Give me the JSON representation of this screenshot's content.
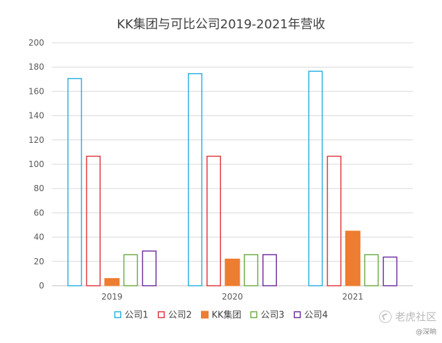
{
  "chart_data": {
    "type": "bar",
    "title": "KK集团与可比公司2019-2021年营收",
    "xlabel": "",
    "ylabel": "",
    "categories": [
      "2019",
      "2020",
      "2021"
    ],
    "ylim": [
      0,
      200
    ],
    "yticks": [
      0,
      20,
      40,
      60,
      80,
      100,
      120,
      140,
      160,
      180,
      200
    ],
    "grid": true,
    "legend_position": "bottom",
    "series": [
      {
        "name": "公司1",
        "values": [
          171,
          175,
          177
        ],
        "color": "#2eb0e0",
        "filled": false
      },
      {
        "name": "公司2",
        "values": [
          107,
          107,
          107
        ],
        "color": "#e0383e",
        "filled": false
      },
      {
        "name": "KK集团",
        "values": [
          6,
          22,
          45
        ],
        "color": "#ed7d31",
        "filled": true
      },
      {
        "name": "公司3",
        "values": [
          26,
          26,
          26
        ],
        "color": "#70ad47",
        "filled": false
      },
      {
        "name": "公司4",
        "values": [
          29,
          26,
          24
        ],
        "color": "#7030a0",
        "filled": false
      }
    ]
  },
  "watermark": {
    "text": "老虎社区",
    "sub": "@深晌",
    "icon": "tiger-logo-icon"
  }
}
